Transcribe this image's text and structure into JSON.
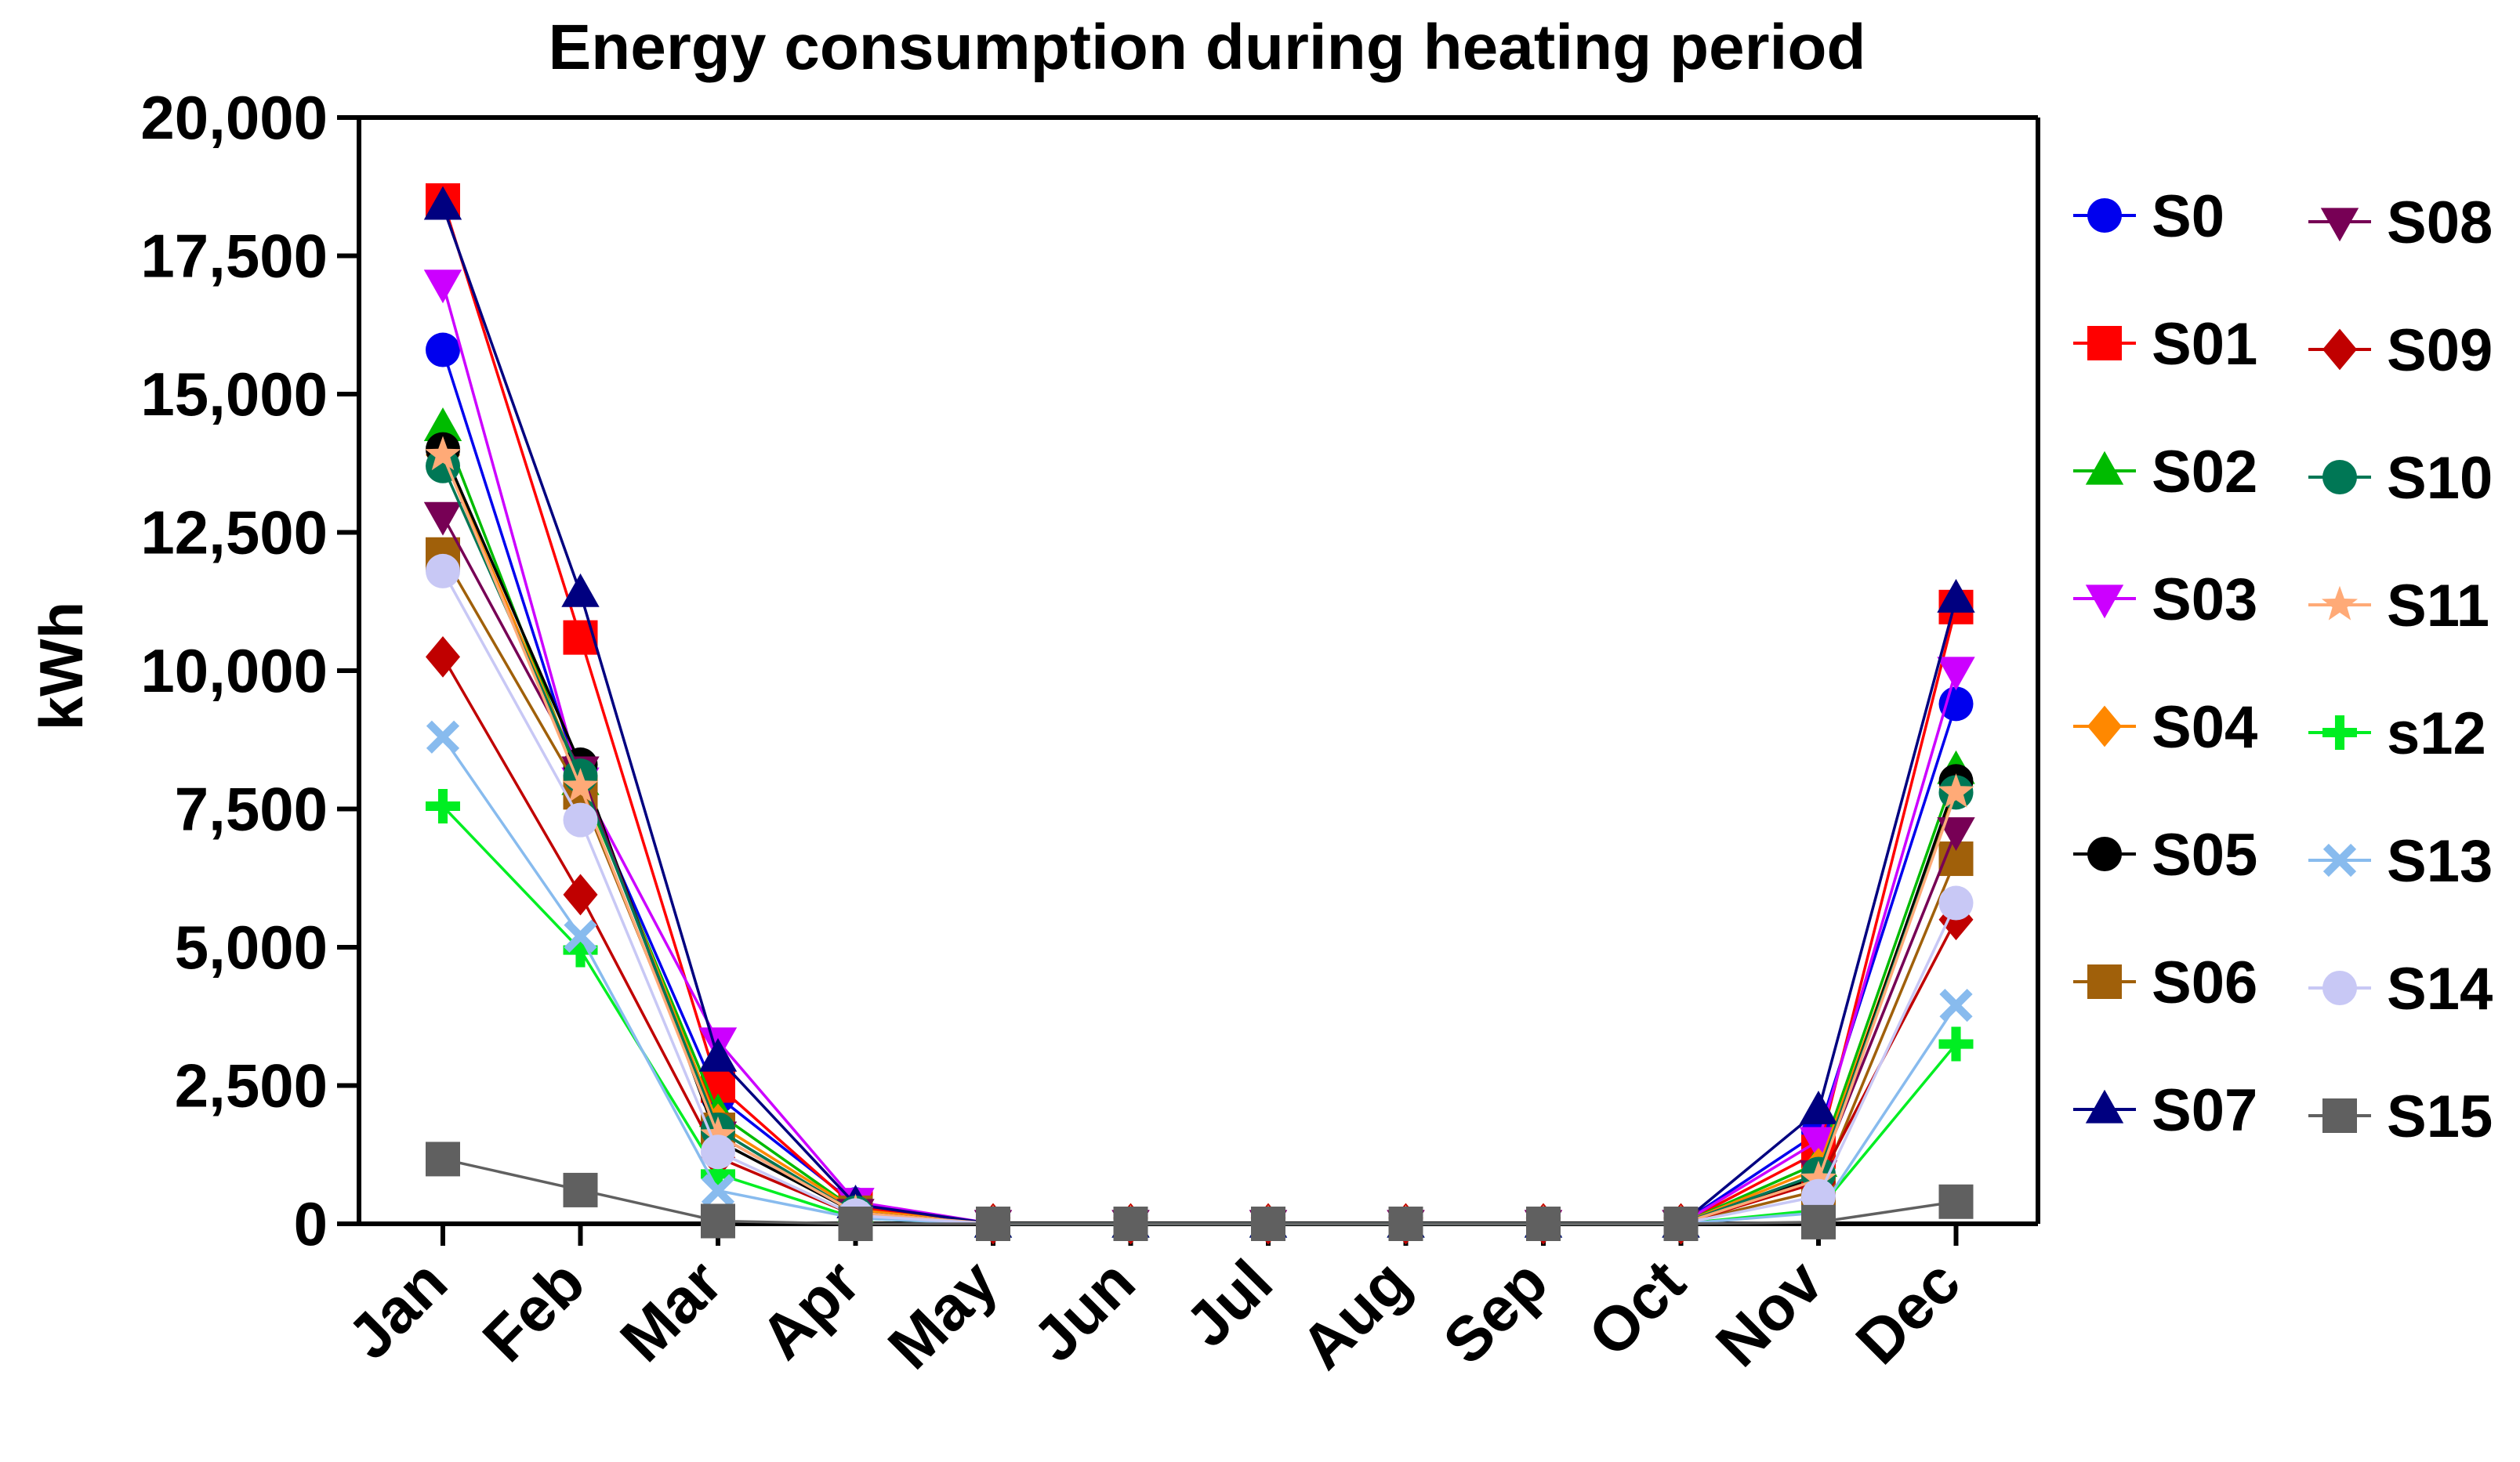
{
  "chart_data": {
    "type": "line",
    "title": "Energy consumption during heating period",
    "xlabel": "",
    "ylabel": "kWh",
    "ylim": [
      0,
      20000
    ],
    "yticks": [
      0,
      2500,
      5000,
      7500,
      10000,
      12500,
      15000,
      17500,
      20000
    ],
    "ytick_labels": [
      "0",
      "2,500",
      "5,000",
      "7,500",
      "10,000",
      "12,500",
      "15,000",
      "17,500",
      "20,000"
    ],
    "categories": [
      "Jan",
      "Feb",
      "Mar",
      "Apr",
      "May",
      "Jun",
      "Jul",
      "Aug",
      "Sep",
      "Oct",
      "Nov",
      "Dec"
    ],
    "legend_position": "right",
    "series": [
      {
        "name": "S0",
        "marker": "circle",
        "color": "#0000ee",
        "values": [
          15800,
          8000,
          2300,
          350,
          0,
          0,
          0,
          0,
          0,
          0,
          1650,
          9400
        ]
      },
      {
        "name": "S01",
        "marker": "square",
        "color": "#ff0000",
        "values": [
          18500,
          10600,
          2500,
          300,
          0,
          0,
          0,
          0,
          0,
          0,
          1300,
          11150
        ]
      },
      {
        "name": "S02",
        "marker": "triangle",
        "color": "#00bb00",
        "values": [
          14400,
          8000,
          2000,
          250,
          0,
          0,
          0,
          0,
          0,
          0,
          1100,
          8200
        ]
      },
      {
        "name": "S03",
        "marker": "triangle-down",
        "color": "#cc00ff",
        "values": [
          17000,
          8000,
          3300,
          400,
          0,
          0,
          0,
          0,
          0,
          0,
          1500,
          10000
        ]
      },
      {
        "name": "S04",
        "marker": "diamond",
        "color": "#ff8800",
        "values": [
          13900,
          8100,
          1800,
          250,
          0,
          0,
          0,
          0,
          0,
          0,
          1000,
          7900
        ]
      },
      {
        "name": "S05",
        "marker": "circle",
        "color": "#000000",
        "values": [
          14000,
          8300,
          1500,
          200,
          0,
          0,
          0,
          0,
          0,
          0,
          850,
          8000
        ]
      },
      {
        "name": "S06",
        "marker": "square",
        "color": "#a0600a",
        "values": [
          12100,
          7800,
          1700,
          200,
          0,
          0,
          0,
          0,
          0,
          0,
          600,
          6600
        ]
      },
      {
        "name": "S07",
        "marker": "triangle",
        "color": "#000080",
        "values": [
          18400,
          11400,
          3000,
          350,
          0,
          0,
          0,
          0,
          0,
          0,
          2050,
          11300
        ]
      },
      {
        "name": "S08",
        "marker": "triangle-down",
        "color": "#770055",
        "values": [
          12800,
          8200,
          1600,
          200,
          0,
          0,
          0,
          0,
          0,
          0,
          900,
          7100
        ]
      },
      {
        "name": "S09",
        "marker": "diamond",
        "color": "#c00000",
        "values": [
          10250,
          5950,
          1200,
          150,
          0,
          0,
          0,
          0,
          0,
          0,
          750,
          5500
        ]
      },
      {
        "name": "S10",
        "marker": "circle",
        "color": "#007755",
        "values": [
          13700,
          8100,
          1700,
          200,
          0,
          0,
          0,
          0,
          0,
          0,
          900,
          7800
        ]
      },
      {
        "name": "S11",
        "marker": "star",
        "color": "#ffaa77",
        "values": [
          13900,
          7900,
          1600,
          200,
          0,
          0,
          0,
          0,
          0,
          0,
          800,
          7800
        ]
      },
      {
        "name": "s12",
        "marker": "plus",
        "color": "#00ee22",
        "values": [
          7550,
          4950,
          900,
          100,
          0,
          0,
          0,
          0,
          0,
          0,
          250,
          3250
        ]
      },
      {
        "name": "S13",
        "marker": "x",
        "color": "#88bbee",
        "values": [
          8800,
          5200,
          600,
          100,
          0,
          0,
          0,
          0,
          0,
          0,
          200,
          3950
        ]
      },
      {
        "name": "S14",
        "marker": "circle",
        "color": "#c8c8f5",
        "values": [
          11800,
          7300,
          1300,
          150,
          0,
          0,
          0,
          0,
          0,
          0,
          500,
          5800
        ]
      },
      {
        "name": "S15",
        "marker": "square",
        "color": "#606060",
        "values": [
          1170,
          610,
          50,
          0,
          0,
          0,
          0,
          0,
          0,
          0,
          30,
          400
        ]
      }
    ]
  }
}
